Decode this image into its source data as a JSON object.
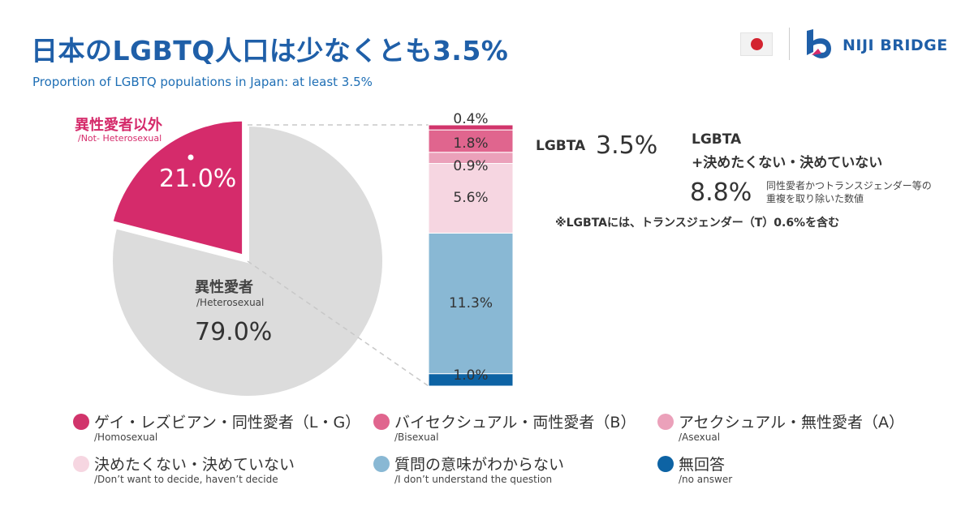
{
  "header": {
    "title": "日本のLGBTQ人口は少なくとも3.5%",
    "subtitle": "Proportion of LGBTQ populations in Japan: at least 3.5%",
    "brand": "NIJI BRIDGE"
  },
  "colors": {
    "title": "#1f5fa8",
    "pink": "#d52b6b",
    "grey": "#dcdcdc",
    "gay_lesbian": "#d1346b",
    "bisexual": "#e0658e",
    "asexual": "#eba1ba",
    "undecided": "#f6d6e1",
    "dont_understand": "#89b8d4",
    "no_answer": "#0d63a4"
  },
  "chart_data": [
    {
      "type": "pie",
      "slices": [
        {
          "label": "異性愛者以外",
          "label_en": "/Not- Heterosexual",
          "value": 21.0,
          "display": "21.0%"
        },
        {
          "label": "異性愛者",
          "label_en": "/Heterosexual",
          "value": 79.0,
          "display": "79.0%"
        }
      ]
    },
    {
      "type": "bar",
      "stacked": true,
      "series": [
        {
          "name": "無回答",
          "value": 1.0,
          "display": "1.0%"
        },
        {
          "name": "質問の意味がわからない",
          "value": 11.3,
          "display": "11.3%"
        },
        {
          "name": "決めたくない・決めていない",
          "value": 5.6,
          "display": "5.6%"
        },
        {
          "name": "アセクシュアル・無性愛者（A）",
          "value": 0.9,
          "display": "0.9%"
        },
        {
          "name": "バイセクシュアル・両性愛者（B）",
          "value": 1.8,
          "display": "1.8%"
        },
        {
          "name": "ゲイ・レズビアン・同性愛者（L・G）",
          "value": 0.4,
          "display": "0.4%"
        }
      ]
    }
  ],
  "summary": {
    "lgbta_label": "LGBTA",
    "lgbta_value": "3.5%",
    "lgbta2_line1": "LGBTA",
    "lgbta2_line2": "+決めたくない・決めていない",
    "lgbta2_value": "8.8%",
    "lgbta2_note1": "同性愛者かつトランスジェンダー等の",
    "lgbta2_note2": "重複を取り除いた数値",
    "footnote": "※LGBTAには、トランスジェンダー（T）0.6%を含む"
  },
  "legend": [
    {
      "jp": "ゲイ・レズビアン・同性愛者（L・G）",
      "en": "/Homosexual",
      "color": "#d1346b"
    },
    {
      "jp": "バイセクシュアル・両性愛者（B）",
      "en": "/Bisexual",
      "color": "#e0658e"
    },
    {
      "jp": "アセクシュアル・無性愛者（A）",
      "en": "/Asexual",
      "color": "#eba1ba"
    },
    {
      "jp": "決めたくない・決めていない",
      "en": "/Don’t want to decide, haven’t decide",
      "color": "#f6d6e1"
    },
    {
      "jp": "質問の意味がわからない",
      "en": "/I don’t understand the question",
      "color": "#89b8d4"
    },
    {
      "jp": "無回答",
      "en": "/no answer",
      "color": "#0d63a4"
    }
  ]
}
